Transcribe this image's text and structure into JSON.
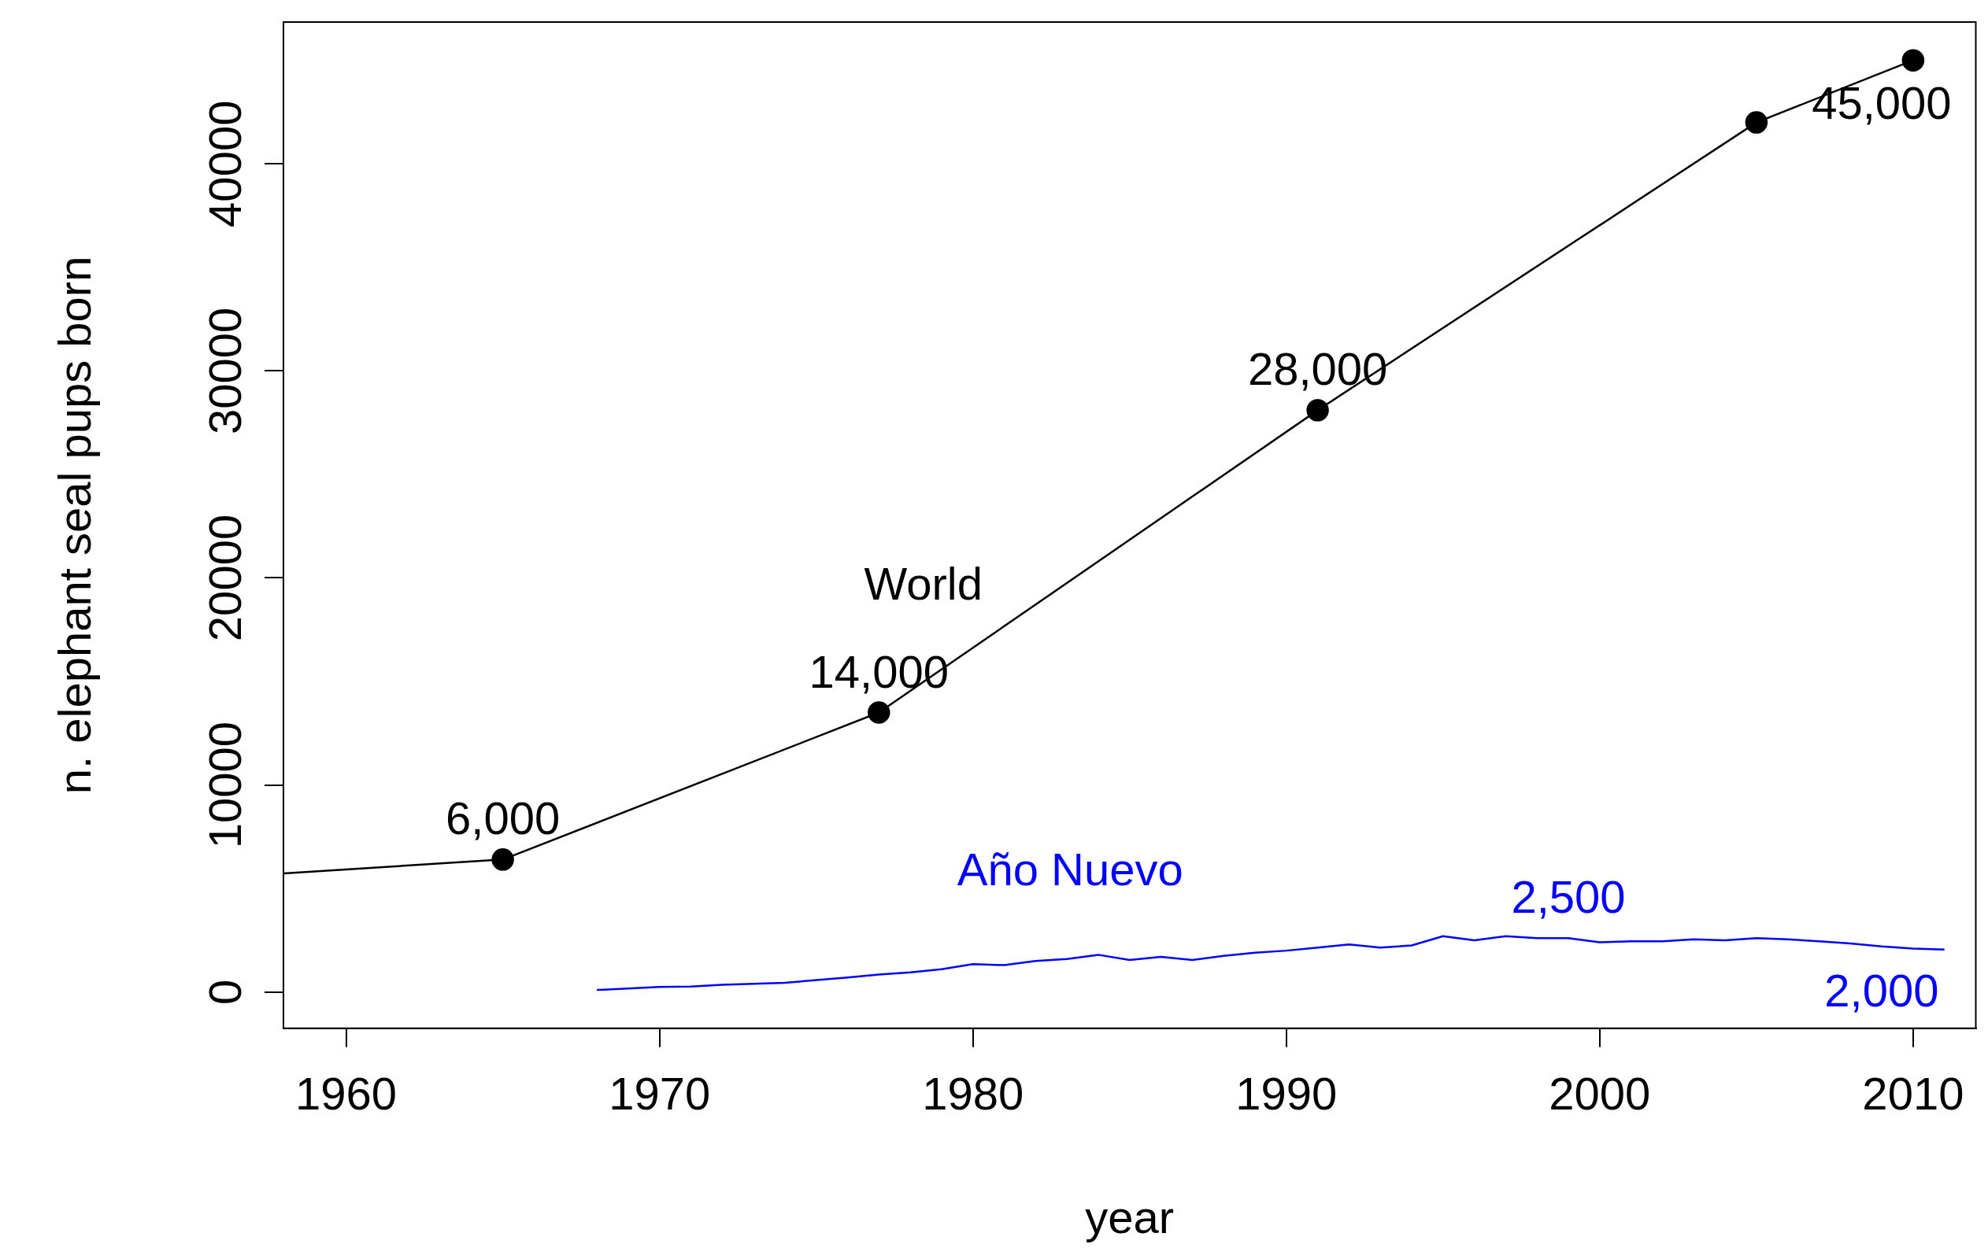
{
  "chart_data": {
    "type": "line",
    "xlabel": "year",
    "ylabel": "n. elephant seal pups born",
    "xlim": [
      1958,
      2012
    ],
    "xticks": [
      1960,
      1970,
      1980,
      1990,
      2000,
      2010
    ],
    "ylim": [
      -1750,
      46850
    ],
    "yticks": [
      0,
      10000,
      20000,
      30000,
      40000
    ],
    "grid": false,
    "legend": false,
    "series": [
      {
        "name": "World",
        "color": "#000000",
        "marker": "circle",
        "x": [
          1958,
          1965,
          1977,
          1991,
          2005,
          2010
        ],
        "values": [
          5730,
          6400,
          13500,
          28100,
          42000,
          45000
        ]
      },
      {
        "name": "Año Nuevo",
        "color": "#0000ff",
        "marker": "none",
        "x": [
          1968,
          1970,
          1971,
          1972,
          1974,
          1976,
          1977,
          1978,
          1979,
          1980,
          1981,
          1982,
          1983,
          1984,
          1985,
          1986,
          1987,
          1988,
          1989,
          1990,
          1991,
          1992,
          1993,
          1994,
          1995,
          1996,
          1997,
          1998,
          1999,
          2000,
          2001,
          2002,
          2003,
          2004,
          2005,
          2006,
          2007,
          2008,
          2009,
          2010,
          2011
        ],
        "values": [
          100,
          250,
          270,
          350,
          450,
          700,
          850,
          950,
          1100,
          1350,
          1300,
          1500,
          1600,
          1800,
          1550,
          1700,
          1550,
          1750,
          1900,
          2000,
          2150,
          2300,
          2150,
          2250,
          2700,
          2500,
          2700,
          2600,
          2600,
          2400,
          2450,
          2450,
          2550,
          2500,
          2600,
          2550,
          2450,
          2350,
          2200,
          2100,
          2050
        ]
      }
    ],
    "annotations": [
      {
        "text": "6,000",
        "x": 1965,
        "y": 6400
      },
      {
        "text": "14,000",
        "x": 1977,
        "y": 13500
      },
      {
        "text": "28,000",
        "x": 1991,
        "y": 28100
      },
      {
        "text": "45,000",
        "x": 2010,
        "y": 45000
      },
      {
        "text": "2,500",
        "x": 1999,
        "y": 2600
      },
      {
        "text": "2,000",
        "x": 2010,
        "y": 2100
      }
    ]
  }
}
